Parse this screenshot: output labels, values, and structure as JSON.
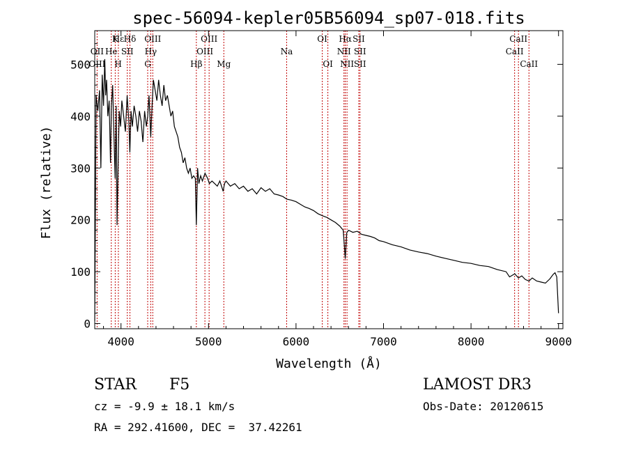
{
  "chart_data": {
    "type": "line",
    "title": "spec-56094-kepler05B56094_sp07-018.fits",
    "xlabel": "Wavelength (Å)",
    "ylabel": "Flux (relative)",
    "xlim": [
      3700,
      9050
    ],
    "ylim": [
      -10,
      565
    ],
    "xticks": [
      4000,
      5000,
      6000,
      7000,
      8000,
      9000
    ],
    "yticks": [
      0,
      100,
      200,
      300,
      400,
      500
    ],
    "series": [
      {
        "name": "flux",
        "x": [
          3700,
          3715,
          3735,
          3755,
          3770,
          3785,
          3800,
          3815,
          3825,
          3835,
          3850,
          3865,
          3880,
          3890,
          3905,
          3920,
          3933,
          3945,
          3955,
          3968,
          3980,
          3995,
          4010,
          4030,
          4050,
          4070,
          4090,
          4101,
          4115,
          4130,
          4150,
          4170,
          4190,
          4210,
          4230,
          4250,
          4270,
          4290,
          4305,
          4320,
          4340,
          4355,
          4370,
          4390,
          4410,
          4430,
          4450,
          4470,
          4490,
          4510,
          4530,
          4550,
          4570,
          4590,
          4610,
          4630,
          4650,
          4670,
          4690,
          4710,
          4730,
          4750,
          4770,
          4790,
          4810,
          4830,
          4850,
          4861,
          4875,
          4890,
          4910,
          4930,
          4960,
          4990,
          5010,
          5040,
          5070,
          5100,
          5130,
          5167,
          5183,
          5200,
          5250,
          5300,
          5350,
          5400,
          5450,
          5500,
          5550,
          5600,
          5650,
          5700,
          5750,
          5800,
          5850,
          5893,
          5950,
          6000,
          6050,
          6100,
          6150,
          6200,
          6250,
          6300,
          6350,
          6400,
          6450,
          6500,
          6540,
          6563,
          6580,
          6600,
          6650,
          6700,
          6750,
          6800,
          6850,
          6900,
          6950,
          7000,
          7100,
          7200,
          7300,
          7400,
          7500,
          7600,
          7700,
          7800,
          7900,
          8000,
          8100,
          8200,
          8300,
          8400,
          8440,
          8500,
          8542,
          8580,
          8620,
          8662,
          8700,
          8750,
          8800,
          8850,
          8900,
          8940,
          8960,
          8980,
          9000
        ],
        "y": [
          5,
          440,
          410,
          450,
          300,
          480,
          420,
          510,
          440,
          470,
          400,
          430,
          310,
          420,
          460,
          360,
          280,
          420,
          190,
          320,
          410,
          380,
          430,
          400,
          370,
          440,
          390,
          330,
          410,
          380,
          420,
          400,
          370,
          410,
          390,
          350,
          410,
          380,
          400,
          440,
          360,
          420,
          470,
          450,
          430,
          470,
          440,
          420,
          460,
          430,
          440,
          420,
          400,
          410,
          380,
          370,
          360,
          340,
          330,
          310,
          320,
          300,
          290,
          300,
          280,
          285,
          280,
          190,
          300,
          270,
          285,
          275,
          290,
          280,
          270,
          275,
          270,
          265,
          275,
          255,
          270,
          275,
          265,
          270,
          260,
          265,
          255,
          260,
          250,
          262,
          255,
          260,
          250,
          248,
          245,
          240,
          238,
          235,
          230,
          225,
          222,
          218,
          212,
          208,
          205,
          200,
          195,
          188,
          180,
          125,
          175,
          180,
          176,
          178,
          172,
          170,
          168,
          165,
          160,
          158,
          152,
          148,
          142,
          138,
          135,
          130,
          126,
          122,
          118,
          116,
          112,
          110,
          104,
          100,
          90,
          96,
          88,
          92,
          85,
          82,
          88,
          82,
          80,
          78,
          86,
          95,
          98,
          90,
          20
        ]
      }
    ],
    "lines_top": [
      {
        "label": "Hε",
        "x": 3970
      },
      {
        "label": "K",
        "x": 3934
      },
      {
        "label": "Hδ",
        "x": 4102
      },
      {
        "label": "OIII",
        "x": 4363
      },
      {
        "label": "OIII",
        "x": 5007
      },
      {
        "label": "OI",
        "x": 6300
      },
      {
        "label": "Hα",
        "x": 6563
      },
      {
        "label": "SII",
        "x": 6717
      },
      {
        "label": "CaII",
        "x": 8542
      }
    ],
    "lines_mid": [
      {
        "label": "OII",
        "x": 3727
      },
      {
        "label": "He",
        "x": 3889
      },
      {
        "label": "SII",
        "x": 4072
      },
      {
        "label": "Hγ",
        "x": 4340
      },
      {
        "label": "OIII",
        "x": 4959
      },
      {
        "label": "Na",
        "x": 5893
      },
      {
        "label": "NII",
        "x": 6548
      },
      {
        "label": "SII",
        "x": 6731
      },
      {
        "label": "CaII",
        "x": 8498
      }
    ],
    "lines_low": [
      {
        "label": "OIII",
        "x": 3727
      },
      {
        "label": "H",
        "x": 3968
      },
      {
        "label": "G",
        "x": 4305
      },
      {
        "label": "Hβ",
        "x": 4861
      },
      {
        "label": "Mg",
        "x": 5175
      },
      {
        "label": "OI",
        "x": 6364
      },
      {
        "label": "NII",
        "x": 6583
      },
      {
        "label": "SII",
        "x": 6731
      },
      {
        "label": "CaII",
        "x": 8662
      }
    ]
  },
  "info": {
    "object_class": "STAR",
    "subclass": "F5",
    "survey": "LAMOST DR3",
    "cz": "cz = -9.9 ± 18.1 km/s",
    "obs_date": "Obs-Date: 20120615",
    "coords": "RA = 292.41600, DEC =  37.42261"
  }
}
